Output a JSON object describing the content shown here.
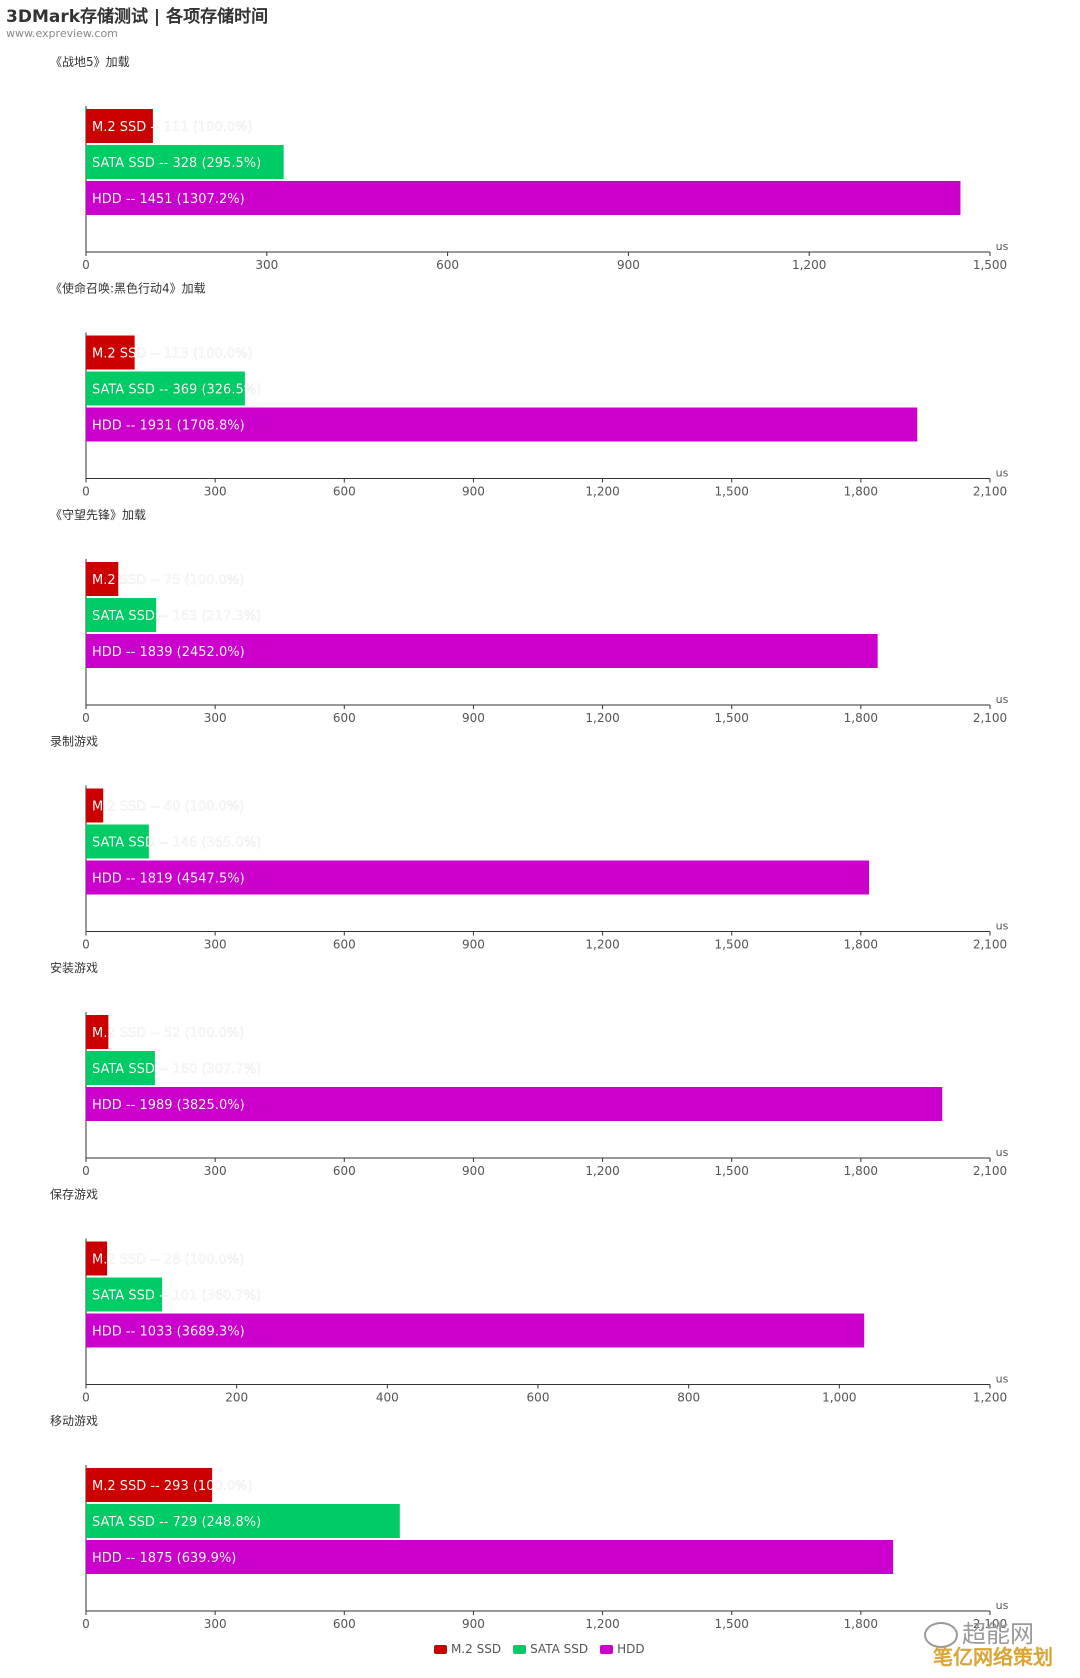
{
  "header": {
    "title": "3DMark存储测试 | 各项存储时间",
    "subtitle": "www.expreview.com"
  },
  "colors": {
    "m2": "#cc0000",
    "sata": "#00cc66",
    "hdd": "#cc00cc",
    "axis": "#333333",
    "tick_text": "#555555"
  },
  "legend": [
    {
      "label": "M.2 SSD",
      "color": "#cc0000"
    },
    {
      "label": "SATA SSD",
      "color": "#00cc66"
    },
    {
      "label": "HDD",
      "color": "#cc00cc"
    }
  ],
  "watermark": {
    "line1": "超能网",
    "line2": "笔亿网络策划"
  },
  "chart_data": [
    {
      "type": "bar",
      "orientation": "horizontal",
      "title": "《战地5》加载",
      "unit": "us",
      "categories": [
        "M.2 SSD",
        "SATA SSD",
        "HDD"
      ],
      "values": [
        111,
        328,
        1451
      ],
      "labels": [
        "M.2 SSD  --  111 (100.0%)",
        "SATA SSD  --  328 (295.5%)",
        "HDD  --  1451 (1307.2%)"
      ],
      "xlim": [
        0,
        1500
      ],
      "ticks": [
        0,
        300,
        600,
        900,
        1200,
        1500
      ],
      "tick_labels": [
        "0",
        "300",
        "600",
        "900",
        "1,200",
        "1,500"
      ]
    },
    {
      "type": "bar",
      "orientation": "horizontal",
      "title": "《使命召唤:黑色行动4》加载",
      "unit": "us",
      "categories": [
        "M.2 SSD",
        "SATA SSD",
        "HDD"
      ],
      "values": [
        113,
        369,
        1931
      ],
      "labels": [
        "M.2 SSD  --  113 (100.0%)",
        "SATA SSD  --  369 (326.5%)",
        "HDD  --  1931 (1708.8%)"
      ],
      "xlim": [
        0,
        2100
      ],
      "ticks": [
        0,
        300,
        600,
        900,
        1200,
        1500,
        1800,
        2100
      ],
      "tick_labels": [
        "0",
        "300",
        "600",
        "900",
        "1,200",
        "1,500",
        "1,800",
        "2,100"
      ]
    },
    {
      "type": "bar",
      "orientation": "horizontal",
      "title": "《守望先锋》加载",
      "unit": "us",
      "categories": [
        "M.2 SSD",
        "SATA SSD",
        "HDD"
      ],
      "values": [
        75,
        163,
        1839
      ],
      "labels": [
        "M.2 SSD  --  75 (100.0%)",
        "SATA SSD  --  163 (217.3%)",
        "HDD  --  1839 (2452.0%)"
      ],
      "xlim": [
        0,
        2100
      ],
      "ticks": [
        0,
        300,
        600,
        900,
        1200,
        1500,
        1800,
        2100
      ],
      "tick_labels": [
        "0",
        "300",
        "600",
        "900",
        "1,200",
        "1,500",
        "1,800",
        "2,100"
      ]
    },
    {
      "type": "bar",
      "orientation": "horizontal",
      "title": "录制游戏",
      "unit": "us",
      "categories": [
        "M.2 SSD",
        "SATA SSD",
        "HDD"
      ],
      "values": [
        40,
        146,
        1819
      ],
      "labels": [
        "M.2 SSD  --  40 (100.0%)",
        "SATA SSD  --  146 (365.0%)",
        "HDD  --  1819 (4547.5%)"
      ],
      "xlim": [
        0,
        2100
      ],
      "ticks": [
        0,
        300,
        600,
        900,
        1200,
        1500,
        1800,
        2100
      ],
      "tick_labels": [
        "0",
        "300",
        "600",
        "900",
        "1,200",
        "1,500",
        "1,800",
        "2,100"
      ]
    },
    {
      "type": "bar",
      "orientation": "horizontal",
      "title": "安装游戏",
      "unit": "us",
      "categories": [
        "M.2 SSD",
        "SATA SSD",
        "HDD"
      ],
      "values": [
        52,
        160,
        1989
      ],
      "labels": [
        "M.2 SSD  --  52 (100.0%)",
        "SATA SSD  --  160 (307.7%)",
        "HDD  --  1989 (3825.0%)"
      ],
      "xlim": [
        0,
        2100
      ],
      "ticks": [
        0,
        300,
        600,
        900,
        1200,
        1500,
        1800,
        2100
      ],
      "tick_labels": [
        "0",
        "300",
        "600",
        "900",
        "1,200",
        "1,500",
        "1,800",
        "2,100"
      ]
    },
    {
      "type": "bar",
      "orientation": "horizontal",
      "title": "保存游戏",
      "unit": "us",
      "categories": [
        "M.2 SSD",
        "SATA SSD",
        "HDD"
      ],
      "values": [
        28,
        101,
        1033
      ],
      "labels": [
        "M.2 SSD  --  28 (100.0%)",
        "SATA SSD  --  101 (360.7%)",
        "HDD  --  1033 (3689.3%)"
      ],
      "xlim": [
        0,
        1200
      ],
      "ticks": [
        0,
        200,
        400,
        600,
        800,
        1000,
        1200
      ],
      "tick_labels": [
        "0",
        "200",
        "400",
        "600",
        "800",
        "1,000",
        "1,200"
      ]
    },
    {
      "type": "bar",
      "orientation": "horizontal",
      "title": "移动游戏",
      "unit": "us",
      "categories": [
        "M.2 SSD",
        "SATA SSD",
        "HDD"
      ],
      "values": [
        293,
        729,
        1875
      ],
      "labels": [
        "M.2 SSD  --  293 (100.0%)",
        "SATA SSD  --  729 (248.8%)",
        "HDD  --  1875 (639.9%)"
      ],
      "xlim": [
        0,
        2100
      ],
      "ticks": [
        0,
        300,
        600,
        900,
        1200,
        1500,
        1800,
        2100
      ],
      "tick_labels": [
        "0",
        "300",
        "600",
        "900",
        "1,200",
        "1,500",
        "1,800",
        "2,100"
      ]
    }
  ]
}
